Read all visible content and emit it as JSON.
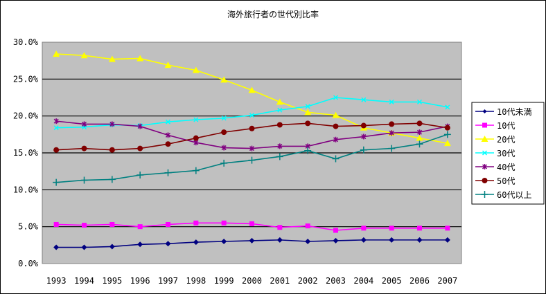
{
  "chart_data": {
    "type": "line",
    "title": "海外旅行者の世代別比率",
    "xlabel": "",
    "ylabel": "",
    "x": [
      "1993",
      "1994",
      "1995",
      "1996",
      "1997",
      "1998",
      "1999",
      "2000",
      "2001",
      "2002",
      "2003",
      "2004",
      "2005",
      "2006",
      "2007"
    ],
    "ylim": [
      0,
      30
    ],
    "yticks": [
      "0.0%",
      "5.0%",
      "10.0%",
      "15.0%",
      "20.0%",
      "25.0%",
      "30.0%"
    ],
    "grid": true,
    "legend_position": "right",
    "plot_background": "#c0c0c0",
    "series": [
      {
        "name": "10代未満",
        "color": "#000080",
        "marker": "diamond",
        "values": [
          2.2,
          2.2,
          2.3,
          2.6,
          2.7,
          2.9,
          3.0,
          3.1,
          3.2,
          3.0,
          3.1,
          3.2,
          3.2,
          3.2,
          3.2
        ]
      },
      {
        "name": "10代",
        "color": "#ff00ff",
        "marker": "square",
        "values": [
          5.3,
          5.2,
          5.3,
          5.0,
          5.3,
          5.5,
          5.5,
          5.4,
          4.9,
          5.1,
          4.5,
          4.8,
          4.8,
          4.8,
          4.8
        ]
      },
      {
        "name": "20代",
        "color": "#ffff00",
        "marker": "triangle",
        "values": [
          28.4,
          28.2,
          27.7,
          27.8,
          26.9,
          26.2,
          24.9,
          23.5,
          21.9,
          20.5,
          20.1,
          18.4,
          17.7,
          17.0,
          16.3
        ]
      },
      {
        "name": "30代",
        "color": "#00ffff",
        "marker": "x",
        "values": [
          18.4,
          18.5,
          18.8,
          18.7,
          19.2,
          19.5,
          19.7,
          20.1,
          20.8,
          21.3,
          22.5,
          22.2,
          21.9,
          21.9,
          21.2
        ]
      },
      {
        "name": "40代",
        "color": "#800080",
        "marker": "star",
        "values": [
          19.3,
          18.9,
          18.9,
          18.6,
          17.4,
          16.4,
          15.7,
          15.6,
          15.9,
          15.9,
          16.8,
          17.2,
          17.7,
          17.8,
          18.6
        ]
      },
      {
        "name": "50代",
        "color": "#800000",
        "marker": "circle",
        "values": [
          15.4,
          15.6,
          15.4,
          15.6,
          16.2,
          17.0,
          17.8,
          18.3,
          18.8,
          19.0,
          18.6,
          18.7,
          18.9,
          19.0,
          18.4
        ]
      },
      {
        "name": "60代以上",
        "color": "#008080",
        "marker": "plus",
        "values": [
          11.0,
          11.3,
          11.4,
          12.0,
          12.3,
          12.6,
          13.6,
          14.0,
          14.5,
          15.3,
          14.2,
          15.4,
          15.6,
          16.2,
          17.5
        ]
      }
    ]
  }
}
